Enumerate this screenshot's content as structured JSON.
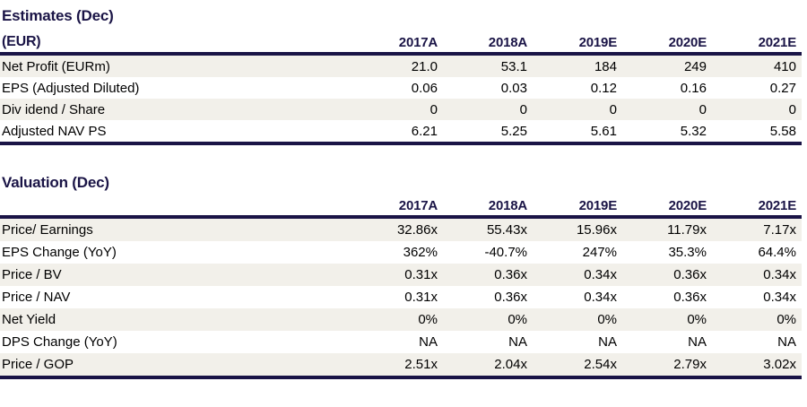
{
  "colors": {
    "navy": "#1a1446",
    "row_stripe": "#f2f0ea",
    "background": "#ffffff",
    "body_text": "#000000"
  },
  "sections": [
    {
      "title": "Estimates (Dec)",
      "corner_label": "(EUR)",
      "columns": [
        "2017A",
        "2018A",
        "2019E",
        "2020E",
        "2021E"
      ],
      "rows": [
        {
          "label": "Net Profit (EURm)",
          "values": [
            "21.0",
            "53.1",
            "184",
            "249",
            "410"
          ]
        },
        {
          "label": "EPS (Adjusted Diluted)",
          "values": [
            "0.06",
            "0.03",
            "0.12",
            "0.16",
            "0.27"
          ]
        },
        {
          "label": "Div idend / Share",
          "values": [
            "0",
            "0",
            "0",
            "0",
            "0"
          ]
        },
        {
          "label": "Adjusted NAV PS",
          "values": [
            "6.21",
            "5.25",
            "5.61",
            "5.32",
            "5.58"
          ]
        }
      ]
    },
    {
      "title": "Valuation (Dec)",
      "corner_label": "",
      "columns": [
        "2017A",
        "2018A",
        "2019E",
        "2020E",
        "2021E"
      ],
      "rows": [
        {
          "label": "Price/ Earnings",
          "values": [
            "32.86x",
            "55.43x",
            "15.96x",
            "11.79x",
            "7.17x"
          ]
        },
        {
          "label": "EPS Change (YoY)",
          "values": [
            "362%",
            "-40.7%",
            "247%",
            "35.3%",
            "64.4%"
          ]
        },
        {
          "label": "Price / BV",
          "values": [
            "0.31x",
            "0.36x",
            "0.34x",
            "0.36x",
            "0.34x"
          ]
        },
        {
          "label": "Price / NAV",
          "values": [
            "0.31x",
            "0.36x",
            "0.34x",
            "0.36x",
            "0.34x"
          ]
        },
        {
          "label": "Net Yield",
          "values": [
            "0%",
            "0%",
            "0%",
            "0%",
            "0%"
          ]
        },
        {
          "label": "DPS Change (YoY)",
          "values": [
            "NA",
            "NA",
            "NA",
            "NA",
            "NA"
          ]
        },
        {
          "label": "Price / GOP",
          "values": [
            "2.51x",
            "2.04x",
            "2.54x",
            "2.79x",
            "3.02x"
          ]
        }
      ]
    }
  ]
}
